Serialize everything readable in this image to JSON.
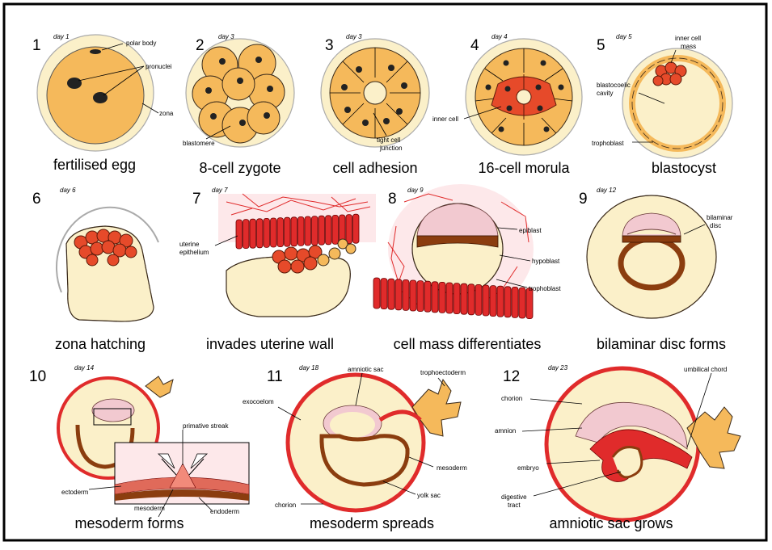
{
  "panels": [
    {
      "number": "1",
      "day": "day 1",
      "caption": "fertilised egg",
      "labels": {
        "polar_body": "polar body",
        "pronuclei": "pronuclei",
        "zona": "zona"
      }
    },
    {
      "number": "2",
      "day": "day 3",
      "caption": "8-cell zygote",
      "labels": {
        "blastomere": "blastomere"
      }
    },
    {
      "number": "3",
      "day": "day 3",
      "caption": "cell adhesion",
      "labels": {
        "tight1": "tight cell",
        "tight2": "junction"
      }
    },
    {
      "number": "4",
      "day": "day 4",
      "caption": "16-cell morula",
      "labels": {
        "inner_cell": "inner cell"
      }
    },
    {
      "number": "5",
      "day": "day 5",
      "caption": "blastocyst",
      "labels": {
        "icm1": "inner cell",
        "icm2": "mass",
        "bc1": "blastocoelic",
        "bc2": "cavity",
        "trophoblast": "trophoblast"
      }
    },
    {
      "number": "6",
      "day": "day 6",
      "caption": "zona hatching",
      "labels": {}
    },
    {
      "number": "7",
      "day": "day 7",
      "caption": "invades uterine wall",
      "labels": {
        "ue1": "uterine",
        "ue2": "epithelium"
      }
    },
    {
      "number": "8",
      "day": "day 9",
      "caption": "cell mass differentiates",
      "labels": {
        "epiblast": "epiblast",
        "hypoblast": "hypoblast",
        "trophoblast": "trophoblast"
      }
    },
    {
      "number": "9",
      "day": "day 12",
      "caption": "bilaminar disc forms",
      "labels": {
        "bd1": "bilaminar",
        "bd2": "disc"
      }
    },
    {
      "number": "10",
      "day": "day 14",
      "caption": "mesoderm forms",
      "labels": {
        "streak": "primative streak",
        "ectoderm": "ectoderm",
        "mesoderm": "mesoderm",
        "endoderm": "endoderm"
      }
    },
    {
      "number": "11",
      "day": "day 18",
      "caption": "mesoderm spreads",
      "labels": {
        "amniotic_sac": "amniotic sac",
        "trophoectoderm": "trophoectoderm",
        "exocoelom": "exocoelom",
        "mesoderm": "mesoderm",
        "yolk_sac": "yolk sac",
        "chorion": "chorion"
      }
    },
    {
      "number": "12",
      "day": "day 23",
      "caption": "amniotic sac grows",
      "labels": {
        "umbilical": "umbilical chord",
        "chorion": "chorion",
        "amnion": "amnion",
        "embryo": "embryo",
        "dt1": "digestive",
        "dt2": "tract"
      }
    }
  ],
  "colors": {
    "zona": "#fbf0c9",
    "cell": "#f5b95b",
    "inner_cell": "#e64a2a",
    "uterine": "#e02b2b",
    "epiblast": "#f2c9d0",
    "hypoblast": "#8b3d0f"
  }
}
